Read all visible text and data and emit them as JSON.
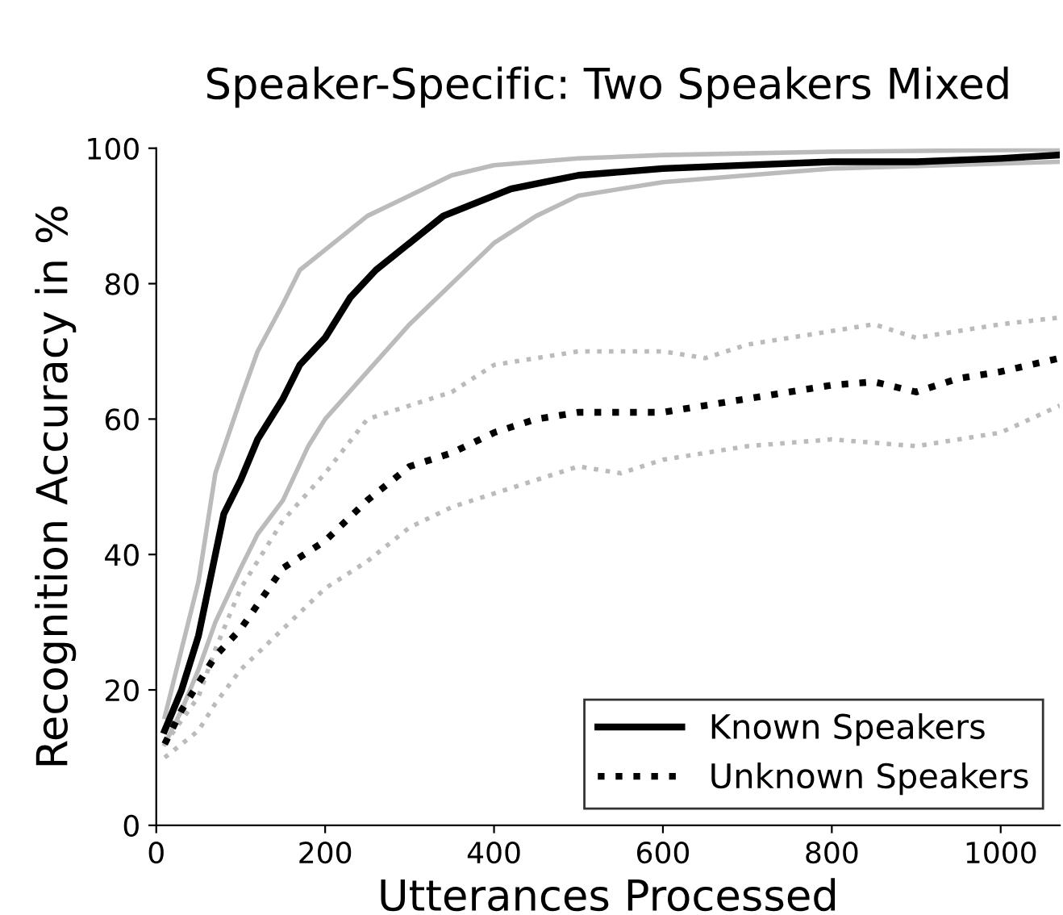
{
  "chart_data": {
    "type": "line",
    "title": "Speaker-Specific: Two Speakers Mixed",
    "xlabel": "Utterances Processed",
    "ylabel": "Recognition Accuracy in %",
    "xlim": [
      0,
      1070
    ],
    "ylim": [
      0,
      100
    ],
    "xticks": [
      0,
      200,
      400,
      600,
      800,
      1000
    ],
    "yticks": [
      0,
      20,
      40,
      60,
      80,
      100
    ],
    "grid": false,
    "legend": "bottom right",
    "marker": "none",
    "series": [
      {
        "color": "#bbbbbb",
        "line_style": "solid",
        "x": [
          10,
          30,
          50,
          70,
          100,
          120,
          150,
          170,
          200,
          250,
          300,
          350,
          400,
          450,
          500,
          600,
          800,
          1070
        ],
        "values": [
          16,
          26,
          36,
          52,
          63,
          70,
          77,
          82,
          85,
          90,
          93,
          96,
          97.5,
          98,
          98.5,
          99,
          99.5,
          99.8
        ]
      },
      {
        "color": "#bbbbbb",
        "line_style": "solid",
        "x": [
          10,
          30,
          50,
          70,
          100,
          120,
          150,
          180,
          200,
          250,
          300,
          350,
          400,
          450,
          500,
          600,
          700,
          800,
          1070
        ],
        "values": [
          12,
          17,
          23,
          30,
          38,
          43,
          48,
          56,
          60,
          67,
          74,
          80,
          86,
          90,
          93,
          95,
          96,
          97,
          98
        ]
      },
      {
        "color": "#bbbbbb",
        "line_style": "dotted",
        "x": [
          10,
          50,
          70,
          100,
          150,
          200,
          250,
          300,
          350,
          400,
          450,
          500,
          600,
          650,
          700,
          800,
          850,
          900,
          1000,
          1070
        ],
        "values": [
          12,
          19,
          26,
          35,
          45,
          52,
          60,
          62,
          64,
          68,
          69,
          70,
          70,
          69,
          71,
          73,
          74,
          72,
          74,
          75
        ]
      },
      {
        "color": "#bbbbbb",
        "line_style": "dotted",
        "x": [
          10,
          50,
          70,
          100,
          150,
          200,
          250,
          300,
          350,
          400,
          450,
          500,
          550,
          600,
          700,
          800,
          900,
          1000,
          1070
        ],
        "values": [
          10,
          14,
          18,
          23,
          29,
          35,
          39,
          44,
          47,
          49,
          51,
          53,
          52,
          54,
          56,
          57,
          56,
          58,
          62
        ]
      },
      {
        "name": "Known Speakers",
        "color": "#000000",
        "line_style": "solid",
        "x": [
          10,
          30,
          50,
          70,
          80,
          100,
          120,
          150,
          170,
          200,
          230,
          260,
          300,
          340,
          380,
          420,
          460,
          500,
          550,
          600,
          700,
          800,
          900,
          1000,
          1070
        ],
        "values": [
          14,
          20,
          28,
          40,
          46,
          51,
          57,
          63,
          68,
          72,
          78,
          82,
          86,
          90,
          92,
          94,
          95,
          96,
          96.5,
          97,
          97.5,
          98,
          98,
          98.5,
          99
        ]
      },
      {
        "name": "Unknown Speakers",
        "color": "#000000",
        "line_style": "dotted",
        "x": [
          10,
          30,
          50,
          70,
          100,
          150,
          200,
          250,
          300,
          350,
          400,
          450,
          500,
          550,
          600,
          650,
          700,
          800,
          850,
          900,
          950,
          1000,
          1070
        ],
        "values": [
          12,
          17,
          21,
          25,
          29,
          38,
          42,
          48,
          53,
          55,
          58,
          60,
          61,
          61,
          61,
          62,
          63,
          65,
          65.5,
          64,
          66,
          67,
          69
        ]
      }
    ]
  }
}
